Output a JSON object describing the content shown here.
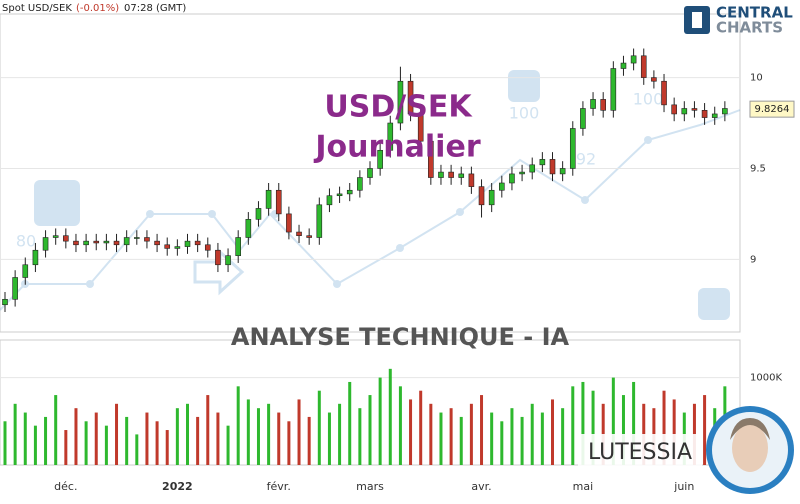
{
  "header": {
    "symbol": "Spot USD/SEK",
    "change": "(-0.01%)",
    "time": "07:28 (GMT)"
  },
  "logo": {
    "line1": "CENTRAL",
    "line2": "CHARTS"
  },
  "overlay": {
    "title": "USD/SEK",
    "subtitle": "Journalier",
    "banner": "ANALYSE TECHNIQUE - IA",
    "brand": "LUTESSIA",
    "watermark_numbers": [
      "80",
      "100",
      "92",
      "100"
    ]
  },
  "chart_data": {
    "type": "candlestick",
    "categories": [
      null,
      null,
      null,
      null,
      null,
      null,
      "déc.",
      null,
      null,
      null,
      null,
      null,
      null,
      null,
      null,
      null,
      null,
      "2022",
      null,
      null,
      null,
      null,
      null,
      null,
      null,
      null,
      null,
      "févr.",
      null,
      null,
      null,
      null,
      null,
      null,
      null,
      null,
      "mars",
      null,
      null,
      null,
      null,
      null,
      null,
      null,
      null,
      null,
      null,
      "avr.",
      null,
      null,
      null,
      null,
      null,
      null,
      null,
      null,
      null,
      "mai",
      null,
      null,
      null,
      null,
      null,
      null,
      null,
      null,
      null,
      "juin",
      null,
      null,
      null,
      null
    ],
    "open": [
      8.75,
      8.78,
      8.9,
      8.97,
      9.05,
      9.12,
      9.13,
      9.1,
      9.08,
      9.1,
      9.09,
      9.1,
      9.08,
      9.12,
      9.12,
      9.1,
      9.08,
      9.06,
      9.07,
      9.1,
      9.08,
      9.05,
      8.97,
      9.02,
      9.12,
      9.22,
      9.28,
      9.38,
      9.25,
      9.15,
      9.13,
      9.12,
      9.3,
      9.35,
      9.36,
      9.38,
      9.45,
      9.5,
      9.6,
      9.75,
      9.98,
      9.8,
      9.65,
      9.45,
      9.48,
      9.45,
      9.47,
      9.4,
      9.3,
      9.38,
      9.42,
      9.47,
      9.48,
      9.52,
      9.55,
      9.47,
      9.5,
      9.72,
      9.83,
      9.88,
      9.82,
      10.05,
      10.08,
      10.12,
      10,
      9.98,
      9.85,
      9.8,
      9.83,
      9.82,
      9.78,
      9.8
    ],
    "high": [
      8.82,
      8.94,
      9.01,
      9.09,
      9.16,
      9.17,
      9.17,
      9.14,
      9.14,
      9.14,
      9.14,
      9.14,
      9.16,
      9.16,
      9.16,
      9.14,
      9.12,
      9.11,
      9.14,
      9.14,
      9.12,
      9.09,
      9.06,
      9.16,
      9.26,
      9.32,
      9.42,
      9.42,
      9.29,
      9.19,
      9.17,
      9.34,
      9.39,
      9.4,
      9.42,
      9.49,
      9.54,
      9.64,
      9.79,
      10.06,
      10.02,
      9.84,
      9.69,
      9.52,
      9.52,
      9.51,
      9.51,
      9.44,
      9.42,
      9.46,
      9.51,
      9.52,
      9.56,
      9.59,
      9.59,
      9.54,
      9.76,
      9.87,
      9.92,
      9.92,
      10.09,
      10.12,
      10.16,
      10.16,
      10.04,
      10.02,
      9.89,
      9.87,
      9.87,
      9.86,
      9.84,
      9.87
    ],
    "low": [
      8.71,
      8.74,
      8.86,
      8.93,
      9.01,
      9.08,
      9.06,
      9.04,
      9.04,
      9.05,
      9.05,
      9.04,
      9.04,
      9.08,
      9.06,
      9.04,
      9.02,
      9.02,
      9.03,
      9.04,
      9.01,
      8.93,
      8.93,
      8.98,
      9.08,
      9.18,
      9.24,
      9.21,
      9.11,
      9.09,
      9.08,
      9.08,
      9.26,
      9.31,
      9.32,
      9.34,
      9.41,
      9.46,
      9.56,
      9.71,
      9.76,
      9.61,
      9.41,
      9.41,
      9.41,
      9.41,
      9.36,
      9.23,
      9.26,
      9.34,
      9.38,
      9.43,
      9.44,
      9.48,
      9.43,
      9.43,
      9.46,
      9.68,
      9.79,
      9.78,
      9.78,
      10.01,
      10.04,
      9.96,
      9.94,
      9.81,
      9.76,
      9.76,
      9.78,
      9.74,
      9.74,
      9.76
    ],
    "close": [
      8.78,
      8.9,
      8.97,
      9.05,
      9.12,
      9.13,
      9.1,
      9.08,
      9.1,
      9.09,
      9.1,
      9.08,
      9.12,
      9.12,
      9.1,
      9.08,
      9.06,
      9.07,
      9.1,
      9.08,
      9.05,
      8.97,
      9.02,
      9.12,
      9.22,
      9.28,
      9.38,
      9.25,
      9.15,
      9.13,
      9.12,
      9.3,
      9.35,
      9.36,
      9.38,
      9.45,
      9.5,
      9.6,
      9.75,
      9.98,
      9.8,
      9.65,
      9.45,
      9.48,
      9.45,
      9.47,
      9.4,
      9.3,
      9.38,
      9.42,
      9.47,
      9.48,
      9.52,
      9.55,
      9.47,
      9.5,
      9.72,
      9.83,
      9.88,
      9.82,
      10.05,
      10.08,
      10.12,
      10,
      9.98,
      9.85,
      9.8,
      9.83,
      9.82,
      9.78,
      9.8,
      9.83
    ],
    "volume": [
      500,
      700,
      600,
      450,
      550,
      800,
      400,
      650,
      500,
      600,
      450,
      700,
      550,
      350,
      600,
      500,
      400,
      650,
      700,
      550,
      800,
      600,
      450,
      900,
      750,
      650,
      700,
      600,
      500,
      750,
      550,
      850,
      600,
      700,
      950,
      650,
      800,
      1000,
      1100,
      900,
      750,
      850,
      700,
      600,
      650,
      550,
      700,
      800,
      600,
      500,
      650,
      550,
      700,
      600,
      750,
      650,
      900,
      950,
      850,
      700,
      1000,
      800,
      950,
      700,
      650,
      850,
      750,
      600,
      700,
      800,
      650,
      900
    ],
    "up_color": "#2eb82e",
    "down_color": "#c0392b",
    "ylim": [
      8.6,
      10.35
    ],
    "yticks": [
      9,
      9.5,
      10
    ],
    "volume_ylim": [
      0,
      1430
    ],
    "volume_yticks": [
      {
        "value": 1000,
        "label": "1000K"
      }
    ],
    "last_price": 9.8264,
    "grid": true
  }
}
